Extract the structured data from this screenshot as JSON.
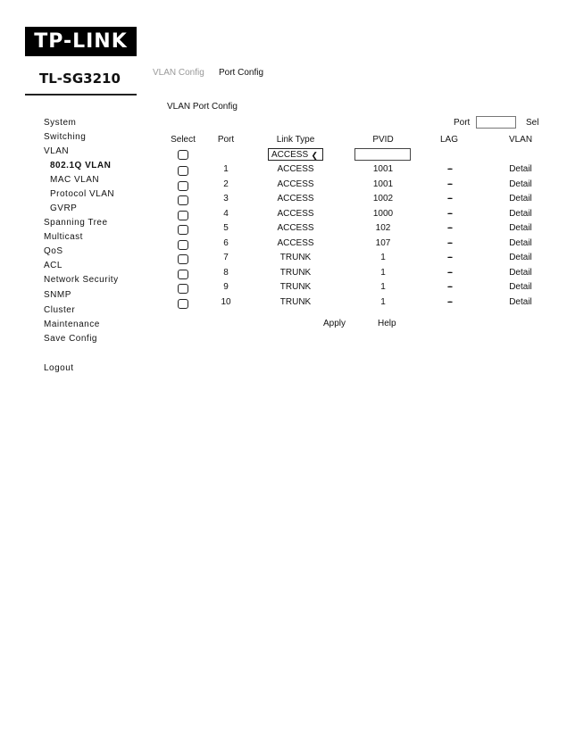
{
  "brand": {
    "logo": "TP-LINK",
    "model": "TL-SG3210"
  },
  "tabs": [
    {
      "label": "VLAN Config"
    },
    {
      "label": "Port Config"
    }
  ],
  "section_title": "VLAN Port Config",
  "sidebar": {
    "items": [
      {
        "label": "System"
      },
      {
        "label": "Switching"
      },
      {
        "label": "VLAN"
      },
      {
        "label": "802.1Q VLAN",
        "sub": true,
        "active": true
      },
      {
        "label": "MAC VLAN",
        "sub": true
      },
      {
        "label": "Protocol VLAN",
        "sub": true
      },
      {
        "label": "GVRP",
        "sub": true
      },
      {
        "label": "Spanning Tree"
      },
      {
        "label": "Multicast"
      },
      {
        "label": "QoS"
      },
      {
        "label": "ACL"
      },
      {
        "label": "Network Security"
      },
      {
        "label": "SNMP"
      },
      {
        "label": "Cluster"
      },
      {
        "label": "Maintenance"
      },
      {
        "label": "Save Config"
      }
    ],
    "logout": "Logout"
  },
  "search": {
    "port_label": "Port",
    "select_label": "Sel",
    "port_value": ""
  },
  "table": {
    "headers": [
      "Select",
      "Port",
      "Link Type",
      "PVID",
      "LAG",
      "VLAN"
    ],
    "filter": {
      "link_type": "ACCESS",
      "pvid": ""
    },
    "rows": [
      {
        "port": "1",
        "link_type": "ACCESS",
        "pvid": "1001",
        "lag": "---",
        "vlan": "Detail"
      },
      {
        "port": "2",
        "link_type": "ACCESS",
        "pvid": "1001",
        "lag": "---",
        "vlan": "Detail"
      },
      {
        "port": "3",
        "link_type": "ACCESS",
        "pvid": "1002",
        "lag": "---",
        "vlan": "Detail"
      },
      {
        "port": "4",
        "link_type": "ACCESS",
        "pvid": "1000",
        "lag": "---",
        "vlan": "Detail"
      },
      {
        "port": "5",
        "link_type": "ACCESS",
        "pvid": "102",
        "lag": "---",
        "vlan": "Detail"
      },
      {
        "port": "6",
        "link_type": "ACCESS",
        "pvid": "107",
        "lag": "---",
        "vlan": "Detail"
      },
      {
        "port": "7",
        "link_type": "TRUNK",
        "pvid": "1",
        "lag": "---",
        "vlan": "Detail"
      },
      {
        "port": "8",
        "link_type": "TRUNK",
        "pvid": "1",
        "lag": "---",
        "vlan": "Detail"
      },
      {
        "port": "9",
        "link_type": "TRUNK",
        "pvid": "1",
        "lag": "---",
        "vlan": "Detail"
      },
      {
        "port": "10",
        "link_type": "TRUNK",
        "pvid": "1",
        "lag": "---",
        "vlan": "Detail"
      }
    ]
  },
  "buttons": {
    "apply": "Apply",
    "help": "Help"
  }
}
